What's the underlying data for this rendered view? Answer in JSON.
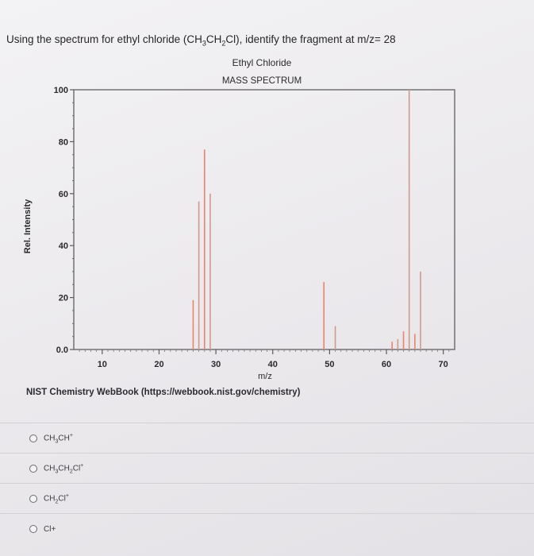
{
  "question": {
    "prefix": "Using the spectrum for ethyl chloride (CH",
    "sub1": "3",
    "mid": "CH",
    "sub2": "2",
    "suffix": "Cl), identify the fragment at m/z= 28"
  },
  "chart_data": {
    "type": "bar",
    "title": "Ethyl Chloride",
    "subtitle": "MASS SPECTRUM",
    "xlabel": "m/z",
    "ylabel": "Rel. Intensity",
    "xlim": [
      5,
      72
    ],
    "ylim": [
      0,
      100
    ],
    "x_ticks": [
      10,
      20,
      30,
      40,
      50,
      60,
      70
    ],
    "y_ticks": [
      "0.0",
      "20",
      "40",
      "60",
      "80",
      "100"
    ],
    "grid": false,
    "peaks": [
      {
        "x": 26,
        "y": 19
      },
      {
        "x": 27,
        "y": 57
      },
      {
        "x": 28,
        "y": 77
      },
      {
        "x": 29,
        "y": 60
      },
      {
        "x": 49,
        "y": 26
      },
      {
        "x": 51,
        "y": 9
      },
      {
        "x": 61,
        "y": 3
      },
      {
        "x": 62,
        "y": 4
      },
      {
        "x": 63,
        "y": 7
      },
      {
        "x": 64,
        "y": 100
      },
      {
        "x": 65,
        "y": 6
      },
      {
        "x": 66,
        "y": 30
      }
    ],
    "colors": {
      "peak": "#e8836f",
      "peak_alt": "#cf9a8c",
      "axis": "#5b5b5b"
    }
  },
  "source": "NIST Chemistry WebBook (https://webbook.nist.gov/chemistry)",
  "options": [
    {
      "parts": [
        {
          "t": "CH"
        },
        {
          "t": "3",
          "sub": true
        },
        {
          "t": "CH"
        },
        {
          "t": "+",
          "sup": true
        }
      ]
    },
    {
      "parts": [
        {
          "t": "CH"
        },
        {
          "t": "3",
          "sub": true
        },
        {
          "t": "CH"
        },
        {
          "t": "2",
          "sub": true
        },
        {
          "t": "Cl"
        },
        {
          "t": "+",
          "sup": true
        }
      ]
    },
    {
      "parts": [
        {
          "t": "CH"
        },
        {
          "t": "2",
          "sub": true
        },
        {
          "t": "Cl"
        },
        {
          "t": "+",
          "sup": true
        }
      ]
    },
    {
      "parts": [
        {
          "t": "Cl"
        },
        {
          "t": "+"
        }
      ]
    }
  ]
}
